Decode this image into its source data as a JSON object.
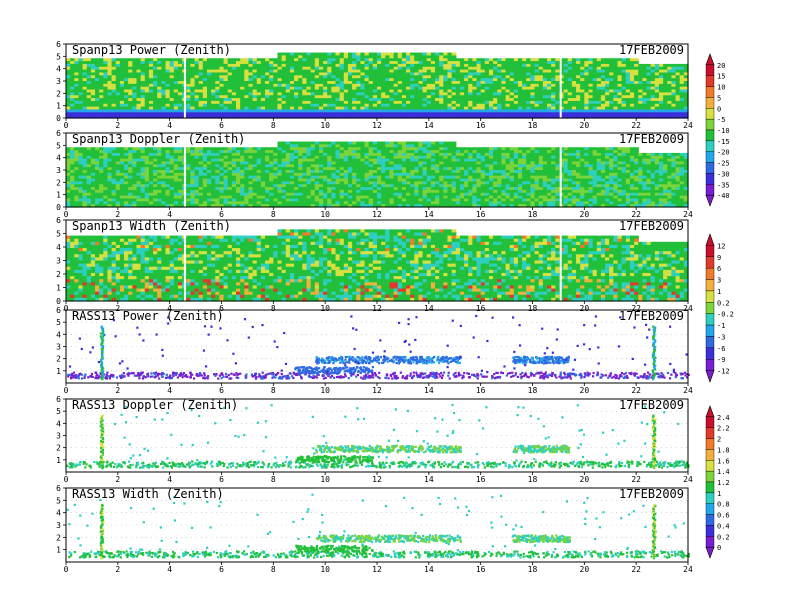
{
  "chart_data": [
    {
      "type": "heatmap",
      "title": "Spanp13 Power (Zenith)",
      "date": "17FEB2009",
      "xlim": [
        0,
        24
      ],
      "ylim": [
        0,
        6
      ],
      "xticks": [
        "0",
        "2",
        "4",
        "6",
        "8",
        "10",
        "12",
        "14",
        "16",
        "18",
        "20",
        "22",
        "24"
      ],
      "yticks": [
        "0",
        "1",
        "2",
        "3",
        "4",
        "5",
        "6"
      ],
      "colorbar": [
        "20",
        "15",
        "10",
        "5",
        "0",
        "-5",
        "-10",
        "-15",
        "-20",
        "-25",
        "-30",
        "-35",
        "-40"
      ],
      "description_bands": [
        {
          "y_range": [
            0.4,
            0.9
          ],
          "color": "#3b57d8"
        },
        {
          "y_range": [
            0.9,
            5.2
          ],
          "color": "#22c03a"
        }
      ]
    },
    {
      "type": "heatmap",
      "title": "Spanp13 Doppler (Zenith)",
      "date": "17FEB2009",
      "xlim": [
        0,
        24
      ],
      "ylim": [
        0,
        6
      ],
      "xticks": [
        "0",
        "2",
        "4",
        "6",
        "8",
        "10",
        "12",
        "14",
        "16",
        "18",
        "20",
        "22",
        "24"
      ],
      "yticks": [
        "0",
        "1",
        "2",
        "3",
        "4",
        "5",
        "6"
      ]
    },
    {
      "type": "heatmap",
      "title": "Spanp13 Width (Zenith)",
      "date": "17FEB2009",
      "xlim": [
        0,
        24
      ],
      "ylim": [
        0,
        6
      ],
      "xticks": [
        "0",
        "2",
        "4",
        "6",
        "8",
        "10",
        "12",
        "14",
        "16",
        "18",
        "20",
        "22",
        "24"
      ],
      "yticks": [
        "0",
        "1",
        "2",
        "3",
        "4",
        "5",
        "6"
      ],
      "colorbar": [
        "12",
        "9",
        "6",
        "3",
        "1",
        "0.2",
        "-0.2",
        "-1",
        "-3",
        "-6",
        "-9",
        "-12"
      ]
    },
    {
      "type": "scatter",
      "title": "RASS13 Power (Zenith)",
      "date": "17FEB2009",
      "xlim": [
        0,
        24
      ],
      "ylim": [
        0,
        6
      ],
      "xticks": [
        "0",
        "2",
        "4",
        "6",
        "8",
        "10",
        "12",
        "14",
        "16",
        "18",
        "20",
        "22",
        "24"
      ],
      "yticks": [
        "1",
        "2",
        "3",
        "4",
        "5",
        "6"
      ]
    },
    {
      "type": "scatter",
      "title": "RASS13 Doppler (Zenith)",
      "date": "17FEB2009",
      "xlim": [
        0,
        24
      ],
      "ylim": [
        0,
        6
      ],
      "xticks": [
        "0",
        "2",
        "4",
        "6",
        "8",
        "10",
        "12",
        "14",
        "16",
        "18",
        "20",
        "22",
        "24"
      ],
      "yticks": [
        "1",
        "2",
        "3",
        "4",
        "5",
        "6"
      ],
      "colorbar": [
        "2.4",
        "2.2",
        "2",
        "1.8",
        "1.6",
        "1.4",
        "1.2",
        "1",
        "0.8",
        "0.6",
        "0.4",
        "0.2",
        "0"
      ]
    },
    {
      "type": "scatter",
      "title": "RASS13 Width (Zenith)",
      "date": "17FEB2009",
      "xlim": [
        0,
        24
      ],
      "ylim": [
        0,
        6
      ],
      "xticks": [
        "0",
        "2",
        "4",
        "6",
        "8",
        "10",
        "12",
        "14",
        "16",
        "18",
        "20",
        "22",
        "24"
      ],
      "yticks": [
        "1",
        "2",
        "3",
        "4",
        "5",
        "6"
      ]
    }
  ],
  "colors": {
    "palette": [
      "#7a1fd0",
      "#3a2fd8",
      "#2f6be0",
      "#23a7e8",
      "#2ecfc0",
      "#22c03a",
      "#7ad43a",
      "#d8e040",
      "#f0b03a",
      "#f07a2a",
      "#e03a2a",
      "#c8102e"
    ]
  }
}
